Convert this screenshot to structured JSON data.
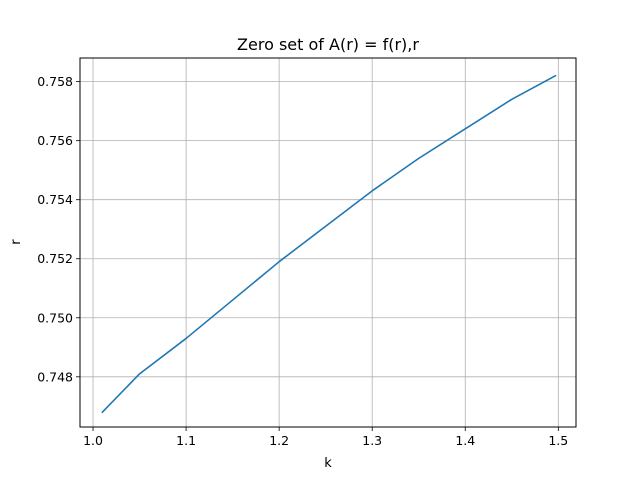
{
  "chart_data": {
    "type": "line",
    "title": "Zero set of A(r) = f(r),r",
    "xlabel": "k",
    "ylabel": "r",
    "xlim": [
      0.986,
      1.519
    ],
    "ylim": [
      0.7463,
      0.7588
    ],
    "xticks": [
      1.0,
      1.1,
      1.2,
      1.3,
      1.4,
      1.5
    ],
    "xtick_labels": [
      "1.0",
      "1.1",
      "1.2",
      "1.3",
      "1.4",
      "1.5"
    ],
    "yticks": [
      0.748,
      0.75,
      0.752,
      0.754,
      0.756,
      0.758
    ],
    "ytick_labels": [
      "0.748",
      "0.750",
      "0.752",
      "0.754",
      "0.756",
      "0.758"
    ],
    "grid": true,
    "series": [
      {
        "name": "zero set",
        "color": "#1f77b4",
        "x": [
          1.01,
          1.05,
          1.1,
          1.15,
          1.2,
          1.25,
          1.3,
          1.35,
          1.4,
          1.45,
          1.497
        ],
        "y": [
          0.7468,
          0.7481,
          0.7493,
          0.7506,
          0.7519,
          0.7531,
          0.7543,
          0.7554,
          0.7564,
          0.7574,
          0.7582
        ]
      }
    ]
  }
}
